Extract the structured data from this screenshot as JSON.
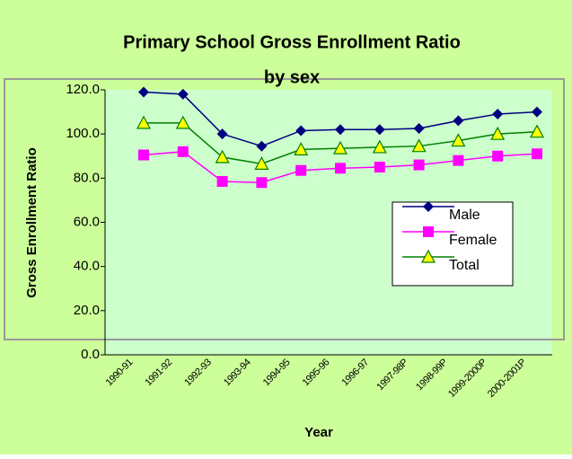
{
  "chart_data": {
    "type": "line",
    "title": [
      "Primary School Gross Enrollment Ratio",
      "by sex"
    ],
    "xlabel": "Year",
    "ylabel": "Gross Enrollment Ratio",
    "categories": [
      "1990-91",
      "1991-92",
      "1992-93",
      "1993-94",
      "1994-95",
      "1995-96",
      "1996-97",
      "1997-98P",
      "1998-99P",
      "1999-2000P",
      "2000-2001P"
    ],
    "series": [
      {
        "name": "Male",
        "color": "#000080",
        "marker": "diamond",
        "values": [
          119,
          118,
          100,
          94.5,
          101.5,
          102,
          102,
          102.5,
          106,
          109,
          110
        ]
      },
      {
        "name": "Female",
        "color": "#ff00ff",
        "marker": "square",
        "values": [
          90.5,
          92,
          78.5,
          78,
          83.5,
          84.5,
          85,
          86,
          88,
          90,
          91
        ]
      },
      {
        "name": "Total",
        "color": "#008000",
        "marker": "triangle",
        "values": [
          105,
          105,
          89.5,
          86.5,
          93,
          93.5,
          94,
          94.5,
          97,
          100,
          101
        ]
      }
    ],
    "ylim": [
      0,
      120
    ],
    "yticks": [
      {
        "value": 0,
        "label": "0.0"
      },
      {
        "value": 20,
        "label": "20.0"
      },
      {
        "value": 40,
        "label": "40.0"
      },
      {
        "value": 60,
        "label": "60.0"
      },
      {
        "value": 80,
        "label": "80.0"
      },
      {
        "value": 100,
        "label": "100.0"
      },
      {
        "value": 120,
        "label": "120.0"
      }
    ],
    "legend": "right"
  }
}
